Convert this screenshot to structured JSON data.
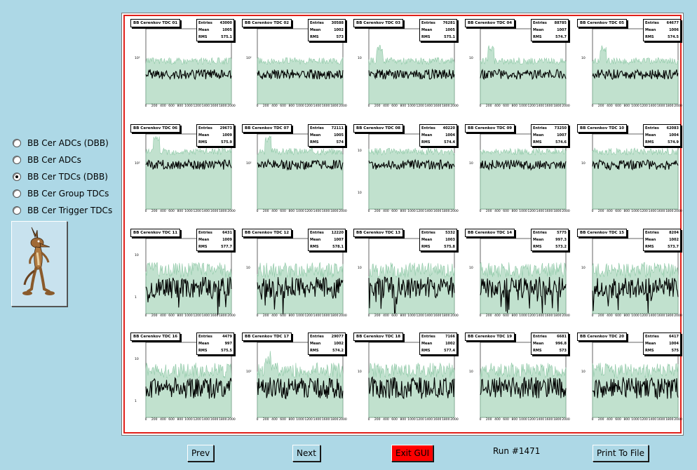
{
  "radio_options": [
    {
      "label": "BB Cer ADCs (DBB)",
      "checked": false
    },
    {
      "label": "BB Cer ADCs",
      "checked": false
    },
    {
      "label": "BB Cer TDCs (DBB)",
      "checked": true
    },
    {
      "label": "BB Cer Group TDCs",
      "checked": false
    },
    {
      "label": "BB Cer Trigger TDCs",
      "checked": false
    }
  ],
  "buttons": {
    "prev": "Prev",
    "next": "Next",
    "exit": "Exit GUI",
    "print": "Print To File"
  },
  "run_label": "Run #1471",
  "stats_labels": {
    "entries": "Entries",
    "mean": "Mean",
    "rms": "RMS"
  },
  "x_ticks": [
    "0",
    "200",
    "400",
    "600",
    "800",
    "1000",
    "1200",
    "1400",
    "1600",
    "1800",
    "2000"
  ],
  "colors": {
    "fill": "#8ec8a6",
    "line": "#000000",
    "frame": "#e0201a",
    "background": "#add8e6"
  },
  "histograms": [
    {
      "title": "BB Cerenkov TDC 01",
      "entries": "43000",
      "mean": "1005",
      "rms": "575.1",
      "yticks": [
        "10²"
      ],
      "peak": false
    },
    {
      "title": "BB Cerenkov TDC 02",
      "entries": "30588",
      "mean": "1002",
      "rms": "573",
      "yticks": [
        "10²"
      ],
      "peak": false
    },
    {
      "title": "BB Cerenkov TDC 03",
      "entries": "76281",
      "mean": "1005",
      "rms": "575.1",
      "yticks": [
        "10"
      ],
      "peak": true
    },
    {
      "title": "BB Cerenkov TDC 04",
      "entries": "88785",
      "mean": "1007",
      "rms": "574.7",
      "yticks": [
        "10"
      ],
      "peak": true
    },
    {
      "title": "BB Cerenkov TDC 05",
      "entries": "64677",
      "mean": "1006",
      "rms": "574.5",
      "yticks": [
        "10"
      ],
      "peak": true
    },
    {
      "title": "BB Cerenkov TDC 06",
      "entries": "29673",
      "mean": "1009",
      "rms": "575.9",
      "yticks": [
        "10²"
      ],
      "peak": true
    },
    {
      "title": "BB Cerenkov TDC 07",
      "entries": "72111",
      "mean": "1005",
      "rms": "574",
      "yticks": [
        "10²"
      ],
      "peak": true
    },
    {
      "title": "BB Cerenkov TDC 08",
      "entries": "40220",
      "mean": "1004",
      "rms": "574.4",
      "yticks": [
        "10",
        "10"
      ],
      "peak": false
    },
    {
      "title": "BB Cerenkov TDC 09",
      "entries": "73250",
      "mean": "1007",
      "rms": "574.6",
      "yticks": [
        "10"
      ],
      "peak": false
    },
    {
      "title": "BB Cerenkov TDC 10",
      "entries": "62083",
      "mean": "1004",
      "rms": "574.9",
      "yticks": [
        "10"
      ],
      "peak": false
    },
    {
      "title": "BB Cerenkov TDC 11",
      "entries": "6431",
      "mean": "1009",
      "rms": "577.7",
      "yticks": [
        "10",
        "1"
      ],
      "peak": false
    },
    {
      "title": "BB Cerenkov TDC 12",
      "entries": "12220",
      "mean": "1007",
      "rms": "578.1",
      "yticks": [
        "10"
      ],
      "peak": false
    },
    {
      "title": "BB Cerenkov TDC 13",
      "entries": "5332",
      "mean": "1003",
      "rms": "575.8",
      "yticks": [
        "10"
      ],
      "peak": false
    },
    {
      "title": "BB Cerenkov TDC 14",
      "entries": "5775",
      "mean": "997.3",
      "rms": "573.2",
      "yticks": [
        "10"
      ],
      "peak": false
    },
    {
      "title": "BB Cerenkov TDC 15",
      "entries": "8204",
      "mean": "1002",
      "rms": "573.7",
      "yticks": [
        "10"
      ],
      "peak": false
    },
    {
      "title": "BB Cerenkov TDC 16",
      "entries": "4479",
      "mean": "997",
      "rms": "575.5",
      "yticks": [
        "10",
        "1"
      ],
      "peak": false
    },
    {
      "title": "BB Cerenkov TDC 17",
      "entries": "29077",
      "mean": "1002",
      "rms": "574.2",
      "yticks": [
        "10²"
      ],
      "peak": true
    },
    {
      "title": "BB Cerenkov TDC 18",
      "entries": "7166",
      "mean": "1002",
      "rms": "577.4",
      "yticks": [
        "10"
      ],
      "peak": false
    },
    {
      "title": "BB Cerenkov TDC 19",
      "entries": "6681",
      "mean": "996.8",
      "rms": "573",
      "yticks": [
        "10"
      ],
      "peak": false
    },
    {
      "title": "BB Cerenkov TDC 20",
      "entries": "6417",
      "mean": "1004",
      "rms": "575",
      "yticks": [
        "10"
      ],
      "peak": false
    }
  ]
}
